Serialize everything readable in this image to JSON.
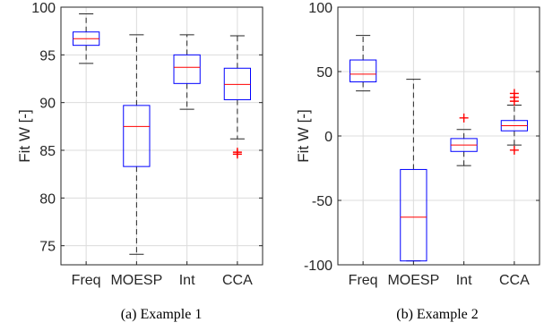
{
  "chart_data": [
    {
      "type": "box",
      "caption": "(a) Example 1",
      "ylabel": "Fit W [-]",
      "ylim": [
        73,
        100
      ],
      "yticks": [
        75,
        80,
        85,
        90,
        95,
        100
      ],
      "categories": [
        "Freq",
        "MOESP",
        "Int",
        "CCA"
      ],
      "grid": true,
      "boxes": [
        {
          "name": "Freq",
          "whisker_low": 94.1,
          "q1": 96.0,
          "median": 96.7,
          "q3": 97.4,
          "whisker_high": 99.3,
          "outliers": []
        },
        {
          "name": "MOESP",
          "whisker_low": 74.1,
          "q1": 83.3,
          "median": 87.5,
          "q3": 89.7,
          "whisker_high": 97.1,
          "outliers": []
        },
        {
          "name": "Int",
          "whisker_low": 89.3,
          "q1": 92.0,
          "median": 93.7,
          "q3": 95.0,
          "whisker_high": 97.1,
          "outliers": []
        },
        {
          "name": "CCA",
          "whisker_low": 86.2,
          "q1": 90.3,
          "median": 91.9,
          "q3": 93.6,
          "whisker_high": 97.0,
          "outliers": [
            84.6,
            84.8
          ]
        }
      ]
    },
    {
      "type": "box",
      "caption": "(b) Example 2",
      "ylabel": "Fit W [-]",
      "ylim": [
        -100,
        100
      ],
      "yticks": [
        -100,
        -50,
        0,
        50,
        100
      ],
      "categories": [
        "Freq",
        "MOESP",
        "Int",
        "CCA"
      ],
      "grid": true,
      "boxes": [
        {
          "name": "Freq",
          "whisker_low": 35,
          "q1": 42,
          "median": 48,
          "q3": 59,
          "whisker_high": 78,
          "outliers": []
        },
        {
          "name": "MOESP",
          "whisker_low": -97,
          "q1": -97,
          "median": -63,
          "q3": -26,
          "whisker_high": 44,
          "outliers": []
        },
        {
          "name": "Int",
          "whisker_low": -23,
          "q1": -12,
          "median": -7,
          "q3": -2,
          "whisker_high": 5,
          "outliers": [
            14
          ]
        },
        {
          "name": "CCA",
          "whisker_low": -7,
          "q1": 4,
          "median": 8,
          "q3": 12,
          "whisker_high": 24,
          "outliers": [
            -11,
            27,
            30,
            33
          ]
        }
      ]
    }
  ]
}
